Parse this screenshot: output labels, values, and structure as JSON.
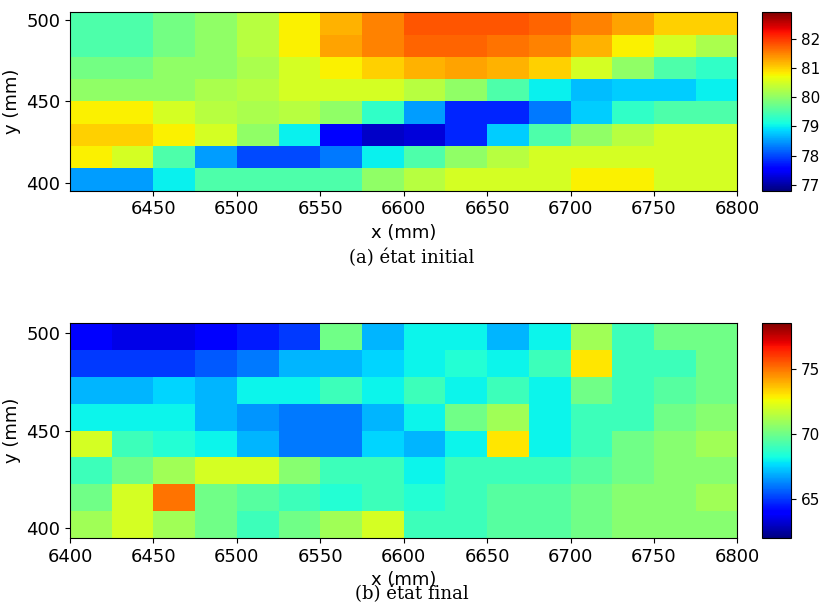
{
  "chart_data": [
    {
      "type": "heatmap",
      "caption": "(a) état initial",
      "xlabel": "x (mm)",
      "ylabel": "y (mm)",
      "x_edges": [
        6400,
        6425,
        6450,
        6475,
        6500,
        6525,
        6550,
        6575,
        6600,
        6625,
        6650,
        6675,
        6700,
        6725,
        6750,
        6775,
        6800
      ],
      "y_edges": [
        395,
        408.75,
        422.5,
        436.25,
        450,
        463.75,
        477.5,
        491.25,
        505
      ],
      "cells": [
        [
          78.5,
          78.5,
          79,
          79.5,
          79.5,
          79.5,
          79.5,
          80,
          80.3,
          80.5,
          80.5,
          80.5,
          80.8,
          80.8,
          80.5,
          80.5
        ],
        [
          80.8,
          80.5,
          79.5,
          78.5,
          78,
          78,
          78.3,
          79,
          79.5,
          80,
          80.3,
          80.5,
          80.5,
          80.5,
          80.5,
          80.5
        ],
        [
          81,
          81,
          80.8,
          80.5,
          80,
          79,
          77.5,
          77.2,
          77.3,
          77.8,
          78.8,
          79.5,
          80,
          80.3,
          80.5,
          80.5
        ],
        [
          80.8,
          80.8,
          80.5,
          80.3,
          80.2,
          80.3,
          80,
          79.3,
          78.5,
          77.8,
          77.8,
          78.3,
          78.8,
          79.3,
          79.5,
          79.5
        ],
        [
          80,
          80,
          80,
          80.2,
          80.3,
          80.5,
          80.5,
          80.5,
          80.3,
          80,
          79.5,
          79,
          78.7,
          78.8,
          78.8,
          79
        ],
        [
          79.8,
          79.8,
          80,
          80,
          80.2,
          80.5,
          80.8,
          81,
          81.2,
          81.3,
          81.2,
          81,
          80.5,
          80,
          79.5,
          79.3
        ],
        [
          79.5,
          79.5,
          79.8,
          80,
          80.3,
          80.8,
          81.3,
          81.5,
          81.7,
          81.7,
          81.6,
          81.5,
          81.2,
          80.8,
          80.5,
          80.2
        ],
        [
          79.5,
          79.5,
          79.8,
          80,
          80.3,
          80.8,
          81.2,
          81.5,
          81.8,
          81.8,
          81.8,
          81.7,
          81.5,
          81.3,
          81,
          81
        ]
      ],
      "xlim": [
        6400,
        6800
      ],
      "ylim": [
        395,
        505
      ],
      "xticks": [
        6450,
        6500,
        6550,
        6600,
        6650,
        6700,
        6750,
        6800
      ],
      "yticks": [
        400,
        450,
        500
      ],
      "colorbar": {
        "range": [
          76.8,
          82.9
        ],
        "ticks": [
          77,
          78,
          79,
          80,
          81,
          82
        ]
      }
    },
    {
      "type": "heatmap",
      "caption": "(b) état final",
      "xlabel": "x (mm)",
      "ylabel": "y (mm)",
      "x_edges": [
        6400,
        6425,
        6450,
        6475,
        6500,
        6525,
        6550,
        6575,
        6600,
        6625,
        6650,
        6675,
        6700,
        6725,
        6750,
        6775,
        6800
      ],
      "y_edges": [
        395,
        408.75,
        422.5,
        436.25,
        450,
        463.75,
        477.5,
        491.25,
        505
      ],
      "cells": [
        [
          71,
          72,
          71,
          70,
          69,
          70,
          71,
          72,
          69,
          69,
          69.5,
          69.5,
          70,
          70.5,
          70.5,
          70.5
        ],
        [
          70,
          72,
          75,
          70,
          69.5,
          69,
          68.5,
          69,
          68.5,
          69,
          69.5,
          69.5,
          70,
          70.5,
          70.5,
          71
        ],
        [
          69,
          70,
          71,
          72,
          72,
          70.5,
          69,
          69,
          68,
          69,
          69,
          69,
          69.5,
          70,
          70.5,
          70.5
        ],
        [
          72,
          69,
          68.5,
          68,
          67,
          66,
          66,
          67.5,
          67,
          68,
          73,
          68,
          69,
          70,
          70.5,
          71
        ],
        [
          68,
          68,
          68,
          67,
          66.5,
          66,
          66,
          67,
          68,
          70,
          71,
          68,
          69,
          69,
          70,
          70.5
        ],
        [
          67,
          67,
          67.5,
          67,
          68,
          68,
          69,
          68,
          69,
          68,
          69,
          68,
          70,
          69,
          69.5,
          70
        ],
        [
          65,
          65,
          65,
          65.5,
          66,
          67,
          67,
          67.5,
          68,
          68.5,
          68,
          69,
          73,
          69,
          69,
          70
        ],
        [
          64,
          63.5,
          63.5,
          64,
          64.5,
          65,
          70,
          67,
          68,
          68,
          67,
          68,
          71,
          69,
          70,
          70
        ]
      ],
      "xlim": [
        6400,
        6800
      ],
      "ylim": [
        395,
        505
      ],
      "xticks": [
        6400,
        6450,
        6500,
        6550,
        6600,
        6650,
        6700,
        6750,
        6800
      ],
      "yticks": [
        400,
        450,
        500
      ],
      "colorbar": {
        "range": [
          62,
          78.5
        ],
        "ticks": [
          65,
          70,
          75
        ]
      }
    }
  ]
}
